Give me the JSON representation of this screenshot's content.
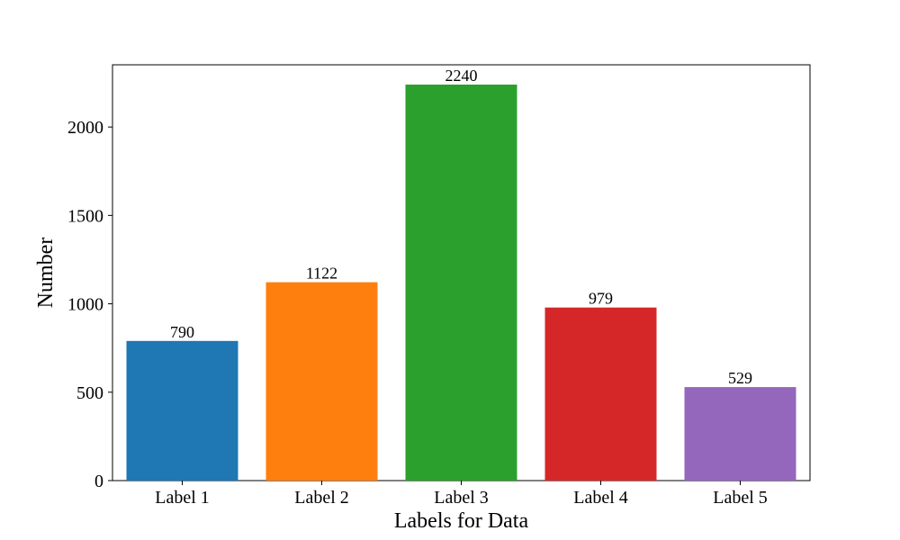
{
  "chart_data": {
    "type": "bar",
    "title": "",
    "xlabel": "Labels for Data",
    "ylabel": "Number",
    "categories": [
      "Label 1",
      "Label 2",
      "Label 3",
      "Label 4",
      "Label 5"
    ],
    "values": [
      790,
      1122,
      2240,
      979,
      529
    ],
    "value_labels": [
      "790",
      "1122",
      "2240",
      "979",
      "529"
    ],
    "colors": [
      "#1f77b4",
      "#ff7f0e",
      "#2ca02c",
      "#d62728",
      "#9467bd"
    ],
    "ylim": [
      0,
      2352
    ],
    "yticks": [
      0,
      500,
      1000,
      1500,
      2000
    ],
    "ytick_labels": [
      "0",
      "500",
      "1000",
      "1500",
      "2000"
    ],
    "grid": false,
    "legend": "none"
  }
}
